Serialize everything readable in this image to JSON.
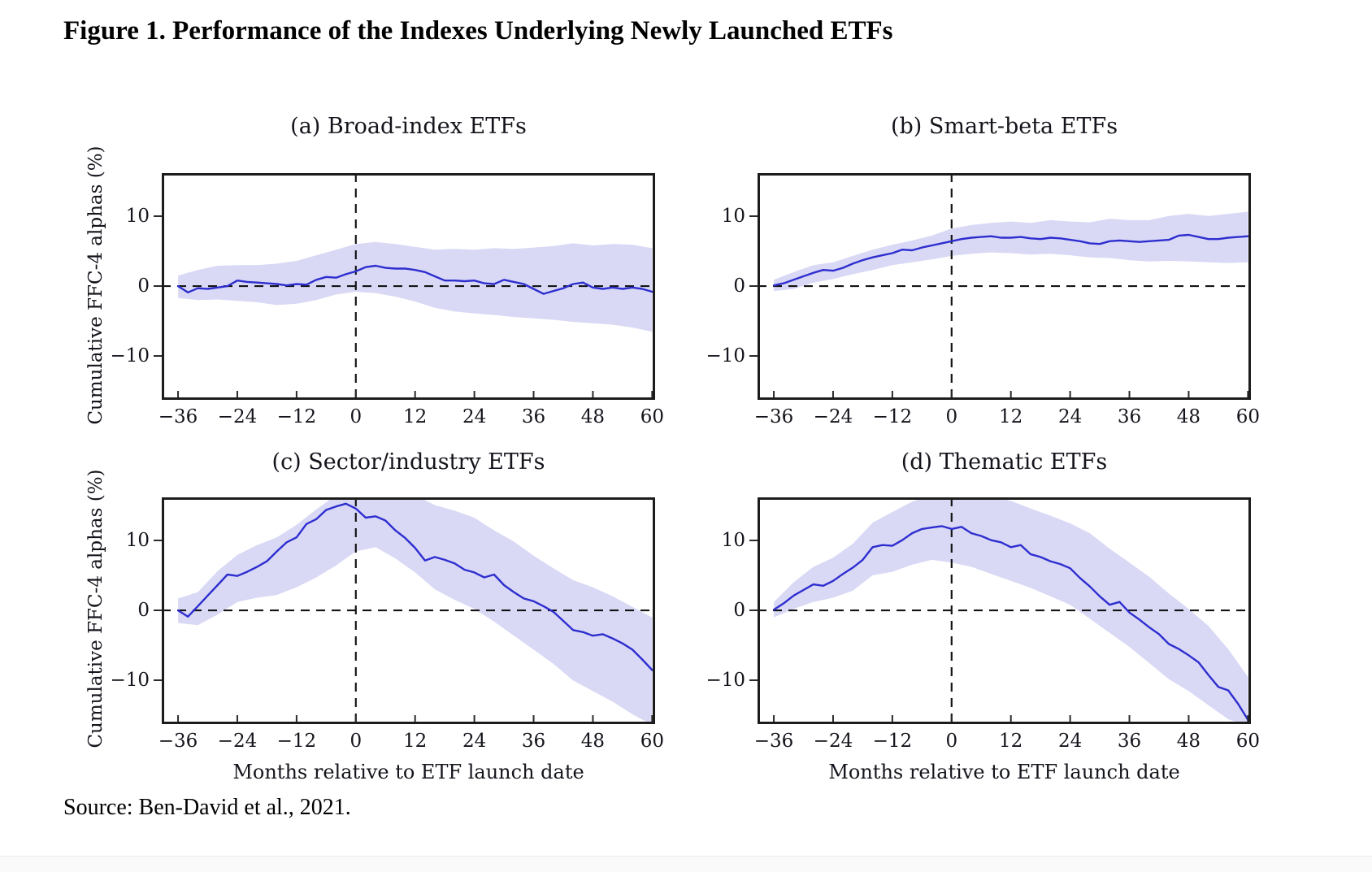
{
  "figure": {
    "title": "Figure 1. Performance of the Indexes Underlying Newly Launched ETFs"
  },
  "source": {
    "text": "Source: Ben-David et al., 2021."
  },
  "colors": {
    "line": "#2e2ecf",
    "band": "#d9d9f6",
    "frame": "#1c1c1c",
    "dash": "#141414",
    "tick": "#2a2a2a"
  },
  "chart_data": [
    {
      "type": "line",
      "title": "(a) Broad-index ETFs",
      "xlabel": "",
      "ylabel": "Cumulative FFC-4 alphas (%)",
      "xlim": [
        -39.3,
        60.6
      ],
      "ylim": [
        -16.2,
        16.1
      ],
      "x_ticks": [
        -36,
        -24,
        -12,
        0,
        12,
        24,
        36,
        48,
        60
      ],
      "x_tick_labels": [
        "−36",
        "−24",
        "−12",
        "0",
        "12",
        "24",
        "36",
        "48",
        "60"
      ],
      "y_ticks": [
        10,
        0,
        -10
      ],
      "y_tick_labels": [
        "10",
        "0",
        "−10"
      ],
      "zero_lines": {
        "horizontal": 0,
        "vertical": 0
      },
      "x": [
        -36,
        -34,
        -32,
        -30,
        -28,
        -26,
        -24,
        -22,
        -20,
        -18,
        -16,
        -14,
        -12,
        -10,
        -8,
        -6,
        -4,
        -2,
        0,
        2,
        4,
        6,
        8,
        10,
        12,
        14,
        16,
        18,
        20,
        22,
        24,
        26,
        28,
        30,
        32,
        34,
        36,
        38,
        40,
        42,
        44,
        46,
        48,
        50,
        52,
        54,
        56,
        58,
        60
      ],
      "mean": [
        0.0,
        -0.9,
        -0.3,
        -0.4,
        -0.2,
        0.0,
        0.8,
        0.6,
        0.5,
        0.4,
        0.3,
        0.1,
        0.3,
        0.2,
        0.9,
        1.3,
        1.2,
        1.7,
        2.1,
        2.7,
        2.9,
        2.6,
        2.5,
        2.5,
        2.3,
        2.0,
        1.4,
        0.8,
        0.8,
        0.7,
        0.8,
        0.4,
        0.3,
        0.9,
        0.6,
        0.3,
        -0.4,
        -1.1,
        -0.7,
        -0.3,
        0.3,
        0.5,
        -0.2,
        -0.4,
        -0.2,
        -0.4,
        -0.2,
        -0.4,
        -0.8
      ],
      "band_x": [
        -36,
        -32,
        -28,
        -24,
        -20,
        -16,
        -12,
        -8,
        -4,
        0,
        4,
        8,
        12,
        16,
        20,
        24,
        28,
        32,
        36,
        40,
        44,
        48,
        52,
        56,
        60
      ],
      "band_upper": [
        1.5,
        2.3,
        2.9,
        3.0,
        3.0,
        3.2,
        3.6,
        4.4,
        5.2,
        6.0,
        6.3,
        6.0,
        5.6,
        5.2,
        5.3,
        5.2,
        5.4,
        5.3,
        5.5,
        5.7,
        6.1,
        5.8,
        6.0,
        5.9,
        5.4
      ],
      "band_lower": [
        -1.7,
        -2.0,
        -1.9,
        -2.1,
        -2.3,
        -2.7,
        -2.5,
        -2.0,
        -1.2,
        -0.8,
        -1.0,
        -1.5,
        -2.2,
        -3.1,
        -3.6,
        -3.9,
        -4.1,
        -4.4,
        -4.6,
        -4.8,
        -5.1,
        -5.3,
        -5.5,
        -5.9,
        -6.5
      ]
    },
    {
      "type": "line",
      "title": "(b) Smart-beta ETFs",
      "xlabel": "",
      "ylabel": "",
      "xlim": [
        -39.3,
        60.6
      ],
      "ylim": [
        -16.2,
        16.1
      ],
      "x_ticks": [
        -36,
        -24,
        -12,
        0,
        12,
        24,
        36,
        48,
        60
      ],
      "x_tick_labels": [
        "−36",
        "−24",
        "−12",
        "0",
        "12",
        "24",
        "36",
        "48",
        "60"
      ],
      "y_ticks": [
        10,
        0,
        -10
      ],
      "y_tick_labels": [
        "10",
        "0",
        "−10"
      ],
      "zero_lines": {
        "horizontal": 0,
        "vertical": 0
      },
      "x": [
        -36,
        -34,
        -32,
        -30,
        -28,
        -26,
        -24,
        -22,
        -20,
        -18,
        -16,
        -14,
        -12,
        -10,
        -8,
        -6,
        -4,
        -2,
        0,
        2,
        4,
        6,
        8,
        10,
        12,
        14,
        16,
        18,
        20,
        22,
        24,
        26,
        28,
        30,
        32,
        34,
        36,
        38,
        40,
        42,
        44,
        46,
        48,
        50,
        52,
        54,
        56,
        58,
        60
      ],
      "mean": [
        0.1,
        0.4,
        0.9,
        1.4,
        1.9,
        2.3,
        2.2,
        2.6,
        3.2,
        3.7,
        4.1,
        4.4,
        4.7,
        5.2,
        5.1,
        5.5,
        5.8,
        6.1,
        6.4,
        6.7,
        6.9,
        7.0,
        7.1,
        6.9,
        6.9,
        7.0,
        6.8,
        6.7,
        6.9,
        6.8,
        6.6,
        6.4,
        6.1,
        6.0,
        6.4,
        6.5,
        6.4,
        6.3,
        6.4,
        6.5,
        6.6,
        7.2,
        7.3,
        7.0,
        6.7,
        6.7,
        6.9,
        7.0,
        7.1
      ],
      "band_x": [
        -36,
        -32,
        -28,
        -24,
        -20,
        -16,
        -12,
        -8,
        -4,
        0,
        4,
        8,
        12,
        16,
        20,
        24,
        28,
        32,
        36,
        40,
        44,
        48,
        52,
        56,
        60
      ],
      "band_upper": [
        0.9,
        2.0,
        3.0,
        3.4,
        4.3,
        5.2,
        5.9,
        6.5,
        7.2,
        8.2,
        8.7,
        9.0,
        9.2,
        9.0,
        9.4,
        9.2,
        9.1,
        9.6,
        9.4,
        9.4,
        10.0,
        10.3,
        10.0,
        10.3,
        10.6
      ],
      "band_lower": [
        -0.7,
        -0.4,
        0.5,
        1.0,
        1.7,
        2.3,
        3.0,
        3.4,
        3.8,
        4.3,
        4.6,
        4.8,
        4.7,
        4.5,
        4.6,
        4.4,
        4.1,
        4.0,
        3.7,
        3.5,
        3.6,
        3.5,
        3.4,
        3.3,
        3.4
      ]
    },
    {
      "type": "line",
      "title": "(c) Sector/industry ETFs",
      "xlabel": "Months relative to ETF launch date",
      "ylabel": "Cumulative FFC-4 alphas (%)",
      "xlim": [
        -39.3,
        60.6
      ],
      "ylim": [
        -16.2,
        16.1
      ],
      "x_ticks": [
        -36,
        -24,
        -12,
        0,
        12,
        24,
        36,
        48,
        60
      ],
      "x_tick_labels": [
        "−36",
        "−24",
        "−12",
        "0",
        "12",
        "24",
        "36",
        "48",
        "60"
      ],
      "y_ticks": [
        10,
        0,
        -10
      ],
      "y_tick_labels": [
        "10",
        "0",
        "−10"
      ],
      "zero_lines": {
        "horizontal": 0,
        "vertical": 0
      },
      "x": [
        -36,
        -34,
        -32,
        -30,
        -28,
        -26,
        -24,
        -22,
        -20,
        -18,
        -16,
        -14,
        -12,
        -10,
        -8,
        -6,
        -4,
        -2,
        0,
        2,
        4,
        6,
        8,
        10,
        12,
        14,
        16,
        18,
        20,
        22,
        24,
        26,
        28,
        30,
        32,
        34,
        36,
        38,
        40,
        42,
        44,
        46,
        48,
        50,
        52,
        54,
        56,
        58,
        60
      ],
      "mean": [
        0.0,
        -0.9,
        0.6,
        2.1,
        3.6,
        5.1,
        4.9,
        5.5,
        6.2,
        7.0,
        8.4,
        9.7,
        10.4,
        12.3,
        13.0,
        14.3,
        14.8,
        15.2,
        14.5,
        13.2,
        13.4,
        12.8,
        11.4,
        10.3,
        8.9,
        7.1,
        7.6,
        7.2,
        6.7,
        5.8,
        5.4,
        4.7,
        5.1,
        3.6,
        2.6,
        1.7,
        1.3,
        0.6,
        -0.2,
        -1.5,
        -2.8,
        -3.1,
        -3.6,
        -3.4,
        -4.0,
        -4.7,
        -5.6,
        -7.0,
        -8.5
      ],
      "band_x": [
        -36,
        -32,
        -28,
        -24,
        -20,
        -16,
        -12,
        -8,
        -4,
        0,
        4,
        8,
        12,
        16,
        20,
        24,
        28,
        32,
        36,
        40,
        44,
        48,
        52,
        56,
        60
      ],
      "band_upper": [
        1.7,
        2.6,
        5.6,
        7.9,
        9.3,
        10.4,
        12.2,
        14.4,
        16.4,
        17.4,
        17.4,
        17.0,
        16.4,
        15.0,
        14.2,
        13.2,
        11.4,
        9.8,
        7.8,
        6.0,
        4.3,
        3.3,
        2.0,
        0.5,
        -1.0
      ],
      "band_lower": [
        -1.8,
        -2.1,
        -0.6,
        1.2,
        1.8,
        2.2,
        3.3,
        4.7,
        6.4,
        8.4,
        9.0,
        7.4,
        5.4,
        3.0,
        1.5,
        0.2,
        -1.6,
        -3.6,
        -5.6,
        -7.6,
        -10.0,
        -11.5,
        -13.0,
        -14.8,
        -16.3
      ]
    },
    {
      "type": "line",
      "title": "(d) Thematic ETFs",
      "xlabel": "Months relative to ETF launch date",
      "ylabel": "",
      "xlim": [
        -39.3,
        60.6
      ],
      "ylim": [
        -16.2,
        16.1
      ],
      "x_ticks": [
        -36,
        -24,
        -12,
        0,
        12,
        24,
        36,
        48,
        60
      ],
      "x_tick_labels": [
        "−36",
        "−24",
        "−12",
        "0",
        "12",
        "24",
        "36",
        "48",
        "60"
      ],
      "y_ticks": [
        10,
        0,
        -10
      ],
      "y_tick_labels": [
        "10",
        "0",
        "−10"
      ],
      "zero_lines": {
        "horizontal": 0,
        "vertical": 0
      },
      "x": [
        -36,
        -34,
        -32,
        -30,
        -28,
        -26,
        -24,
        -22,
        -20,
        -18,
        -16,
        -14,
        -12,
        -10,
        -8,
        -6,
        -4,
        -2,
        0,
        2,
        4,
        6,
        8,
        10,
        12,
        14,
        16,
        18,
        20,
        22,
        24,
        26,
        28,
        30,
        32,
        34,
        36,
        38,
        40,
        42,
        44,
        46,
        48,
        50,
        52,
        54,
        56,
        58,
        60
      ],
      "mean": [
        0.1,
        1.0,
        2.1,
        2.9,
        3.7,
        3.5,
        4.2,
        5.2,
        6.1,
        7.2,
        9.0,
        9.3,
        9.2,
        10.0,
        11.0,
        11.6,
        11.8,
        12.0,
        11.6,
        11.9,
        11.0,
        10.6,
        10.0,
        9.7,
        9.0,
        9.3,
        8.0,
        7.6,
        7.0,
        6.6,
        6.0,
        4.6,
        3.4,
        2.0,
        0.8,
        1.2,
        -0.3,
        -1.3,
        -2.4,
        -3.4,
        -4.8,
        -5.5,
        -6.4,
        -7.4,
        -9.2,
        -10.9,
        -11.4,
        -13.3,
        -15.6
      ],
      "band_x": [
        -36,
        -32,
        -28,
        -24,
        -20,
        -16,
        -12,
        -8,
        -4,
        0,
        4,
        8,
        12,
        16,
        20,
        24,
        28,
        32,
        36,
        40,
        44,
        48,
        52,
        56,
        60
      ],
      "band_upper": [
        1.2,
        4.0,
        6.2,
        7.5,
        9.5,
        12.5,
        14.0,
        15.5,
        16.4,
        17.0,
        16.9,
        16.3,
        15.6,
        14.5,
        13.5,
        12.4,
        11.0,
        8.8,
        6.8,
        4.8,
        2.4,
        0.2,
        -2.2,
        -5.5,
        -9.5
      ],
      "band_lower": [
        -1.0,
        0.2,
        1.2,
        1.8,
        2.8,
        5.0,
        5.5,
        6.5,
        7.2,
        6.8,
        6.2,
        5.2,
        4.2,
        3.2,
        2.0,
        0.8,
        -1.2,
        -3.2,
        -5.2,
        -7.5,
        -9.8,
        -11.5,
        -13.5,
        -15.5,
        -16.5
      ]
    }
  ]
}
